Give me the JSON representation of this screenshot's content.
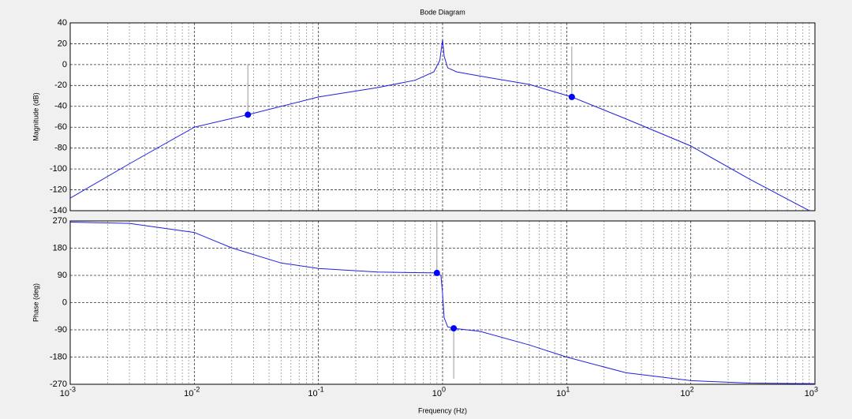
{
  "chart_data": [
    {
      "type": "line",
      "title": "Bode Diagram",
      "ylabel": "Magnitude (dB)",
      "log_x": true,
      "grid": true,
      "xlim": [
        0.001,
        1000
      ],
      "xticks": [
        0.001,
        0.01,
        0.1,
        1,
        10,
        100,
        1000
      ],
      "ylim": [
        -140,
        40
      ],
      "yticks": [
        40,
        20,
        0,
        -20,
        -40,
        -60,
        -80,
        -100,
        -120,
        -140
      ],
      "series": [
        {
          "color": "#2020e0",
          "x": [
            0.001,
            0.003,
            0.01,
            0.027,
            0.1,
            0.3,
            0.6,
            0.85,
            0.95,
            1.0,
            1.03,
            1.1,
            1.3,
            2,
            5,
            11,
            30,
            100,
            300,
            900
          ],
          "values": [
            -128,
            -95,
            -60,
            -48,
            -31,
            -22,
            -15,
            -7,
            4,
            24,
            8,
            -3,
            -7,
            -11,
            -19,
            -31,
            -52,
            -78,
            -110,
            -140
          ]
        },
        {
          "style": "marker",
          "color": "#0000ff",
          "stems": [
            "up",
            "up"
          ],
          "x": [
            0.027,
            11
          ],
          "values": [
            -48,
            -31
          ]
        }
      ]
    },
    {
      "type": "line",
      "ylabel": "Phase (deg)",
      "xlabel": "Frequency  (Hz)",
      "log_x": true,
      "grid": true,
      "xlim": [
        0.001,
        1000
      ],
      "xticks": [
        {
          "value": 0.001,
          "label": "10",
          "sup": "-3"
        },
        {
          "value": 0.01,
          "label": "10",
          "sup": "-2"
        },
        {
          "value": 0.1,
          "label": "10",
          "sup": "-1"
        },
        {
          "value": 1,
          "label": "10",
          "sup": "0"
        },
        {
          "value": 10,
          "label": "10",
          "sup": "1"
        },
        {
          "value": 100,
          "label": "10",
          "sup": "2"
        },
        {
          "value": 1000,
          "label": "10",
          "sup": "3"
        }
      ],
      "ylim": [
        -270,
        270
      ],
      "yticks": [
        270,
        180,
        90,
        0,
        -90,
        -180,
        -270
      ],
      "series": [
        {
          "color": "#2020e0",
          "x": [
            0.001,
            0.003,
            0.01,
            0.02,
            0.05,
            0.1,
            0.3,
            0.9,
            0.97,
            1.0,
            1.03,
            1.1,
            1.23,
            2,
            5,
            10,
            30,
            100,
            300,
            1000
          ],
          "values": [
            266,
            262,
            232,
            181,
            131,
            113,
            101,
            98,
            90,
            30,
            -50,
            -80,
            -85,
            -95,
            -140,
            -180,
            -232,
            -258,
            -266,
            -268
          ]
        },
        {
          "style": "marker",
          "color": "#0000ff",
          "stems": [
            "up",
            "down"
          ],
          "x": [
            0.9,
            1.23
          ],
          "values": [
            98,
            -85
          ]
        }
      ]
    }
  ]
}
